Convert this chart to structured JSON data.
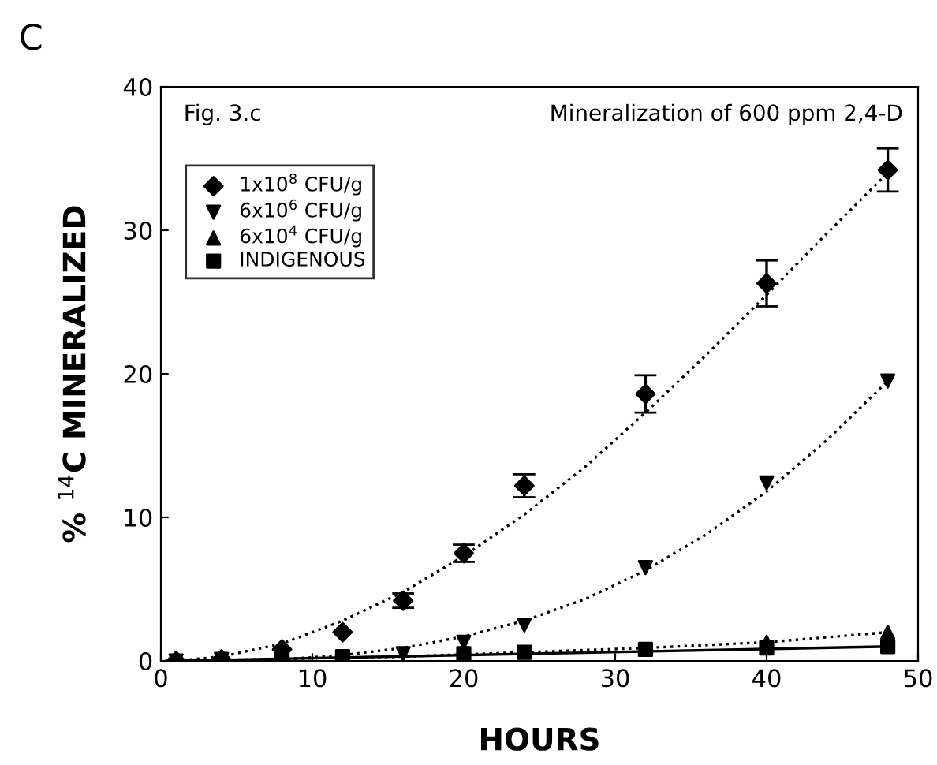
{
  "chart_data": {
    "type": "scatter",
    "title": "Mineralization of 600 ppm 2,4-D",
    "xlabel": "HOURS",
    "ylabel": "% $^{14}$C MINERALIZED",
    "annotations": [
      "Fig. 3.c",
      "C"
    ],
    "xlim": [
      0,
      50
    ],
    "ylim": [
      0,
      40
    ],
    "xticks": [
      0,
      10,
      20,
      30,
      40,
      50
    ],
    "yticks": [
      0,
      10,
      20,
      30,
      40
    ],
    "grid": false,
    "legend": "top left",
    "series": [
      {
        "name": "1x10$^{8}$ CFU/g",
        "color": "#000000",
        "marker": "diamond",
        "x": [
          1,
          4,
          8,
          12,
          16,
          20,
          24,
          32,
          40,
          48
        ],
        "values": [
          0,
          0.1,
          0.8,
          2.0,
          4.2,
          7.5,
          12.2,
          18.6,
          26.3,
          34.2
        ],
        "errors": [
          null,
          null,
          null,
          null,
          0.5,
          0.6,
          0.8,
          1.3,
          1.6,
          1.5
        ]
      },
      {
        "name": "6x10$^{6}$ CFU/g",
        "color": "#000000",
        "marker": "triangle_down",
        "x": [
          1,
          4,
          16,
          20,
          24,
          32,
          40,
          48
        ],
        "values": [
          0,
          0.1,
          0.5,
          1.3,
          2.5,
          6.5,
          12.4,
          19.5
        ]
      },
      {
        "name": "6x10$^{4}$ CFU/g",
        "color": "#000000",
        "marker": "triangle",
        "x": [
          40,
          48
        ],
        "values": [
          1.3,
          2.0
        ]
      },
      {
        "name": "INDIGENOUS",
        "color": "#000000",
        "marker": "square",
        "x": [
          8,
          12,
          20,
          24,
          32,
          40,
          48
        ],
        "values": [
          0.3,
          0.3,
          0.5,
          0.6,
          0.8,
          0.9,
          1.0
        ]
      },
      {
        "type": "line",
        "line_style": "dotted",
        "color": "#000000",
        "x": [
          1,
          4,
          8,
          12,
          16,
          20,
          24,
          28,
          32,
          36,
          40,
          44,
          48
        ],
        "values": [
          0,
          0.3,
          1.2,
          2.8,
          4.8,
          7.3,
          10.2,
          13.5,
          17.3,
          21.3,
          25.5,
          29.8,
          34.0
        ]
      },
      {
        "type": "line",
        "line_style": "dotted",
        "color": "#000000",
        "x": [
          1,
          8,
          12,
          16,
          20,
          24,
          28,
          32,
          36,
          40,
          44,
          48
        ],
        "values": [
          0,
          0.1,
          0.4,
          0.9,
          1.7,
          2.8,
          4.3,
          6.3,
          8.8,
          11.8,
          15.4,
          19.5
        ]
      },
      {
        "type": "line",
        "line_style": "dotted",
        "color": "#000000",
        "x": [
          1,
          16,
          32,
          40,
          48
        ],
        "values": [
          0,
          0.3,
          0.9,
          1.3,
          2.0
        ]
      },
      {
        "type": "line",
        "line_style": "solid",
        "color": "#000000",
        "x": [
          1,
          48
        ],
        "values": [
          0,
          1.0
        ]
      }
    ]
  }
}
